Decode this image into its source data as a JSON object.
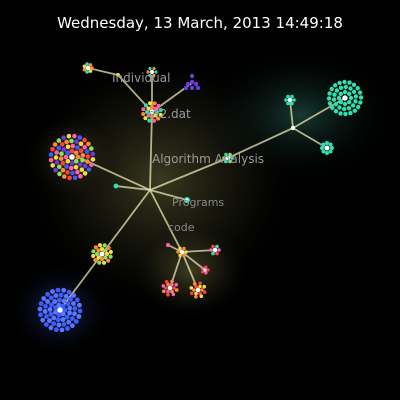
{
  "header": {
    "timestamp": "Wednesday, 13 March, 2013 14:49:18"
  },
  "graph": {
    "labels": {
      "individual": "Individual",
      "ef2dat": "ef2.dat",
      "algorithm_analysis": "Algorithm Analysis",
      "programs": "Programs",
      "code": "code"
    }
  },
  "colors": {
    "background": "#000000",
    "edge": "#e8e6b0",
    "teal": "#2ee0b0",
    "blue": "#3e5cff",
    "purple": "#6a3cd8",
    "orange": "#ff8a3a",
    "yellow": "#f0e040",
    "green": "#8ae060",
    "red": "#ff4040",
    "pink": "#ff60b0"
  }
}
